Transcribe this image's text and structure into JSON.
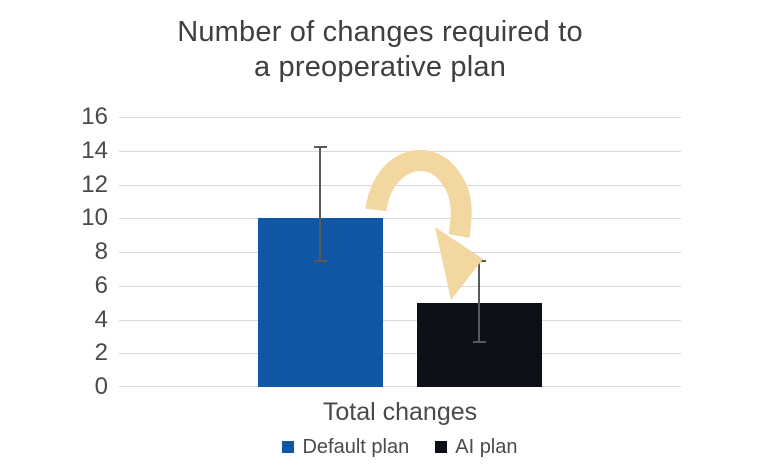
{
  "title": {
    "line1": "Number of changes required to",
    "line2": "a preoperative plan"
  },
  "colors": {
    "background": "#FFFFFF",
    "title_text": "#3F3F3F",
    "axis_text": "#4A4A4A",
    "gridline": "#D9D9D9",
    "error_bar": "#595959",
    "default_plan": "#1057A5",
    "ai_plan": "#0D1016",
    "arrow": "#F2D7A0"
  },
  "chart_data": {
    "type": "bar",
    "title": "Number of changes required to a preoperative plan",
    "categories": [
      "Total changes"
    ],
    "series": [
      {
        "name": "Default plan",
        "color": "#1057A5",
        "values": [
          10
        ],
        "error_bars": [
          {
            "low": 7.4,
            "high": 14.3
          }
        ]
      },
      {
        "name": "AI plan",
        "color": "#0D1016",
        "values": [
          5
        ],
        "error_bars": [
          {
            "low": 2.6,
            "high": 7.5
          }
        ]
      }
    ],
    "xlabel": "Total changes",
    "ylabel": "",
    "ylim": [
      0,
      16
    ],
    "y_ticks": [
      0,
      2,
      4,
      6,
      8,
      10,
      12,
      14,
      16
    ],
    "grid": "horizontal",
    "legend_position": "bottom",
    "annotations": [
      {
        "type": "curved-arrow",
        "description": "tan curved arrow from top of Default plan bar down to top of AI plan bar",
        "color": "#F2D7A0"
      }
    ]
  }
}
